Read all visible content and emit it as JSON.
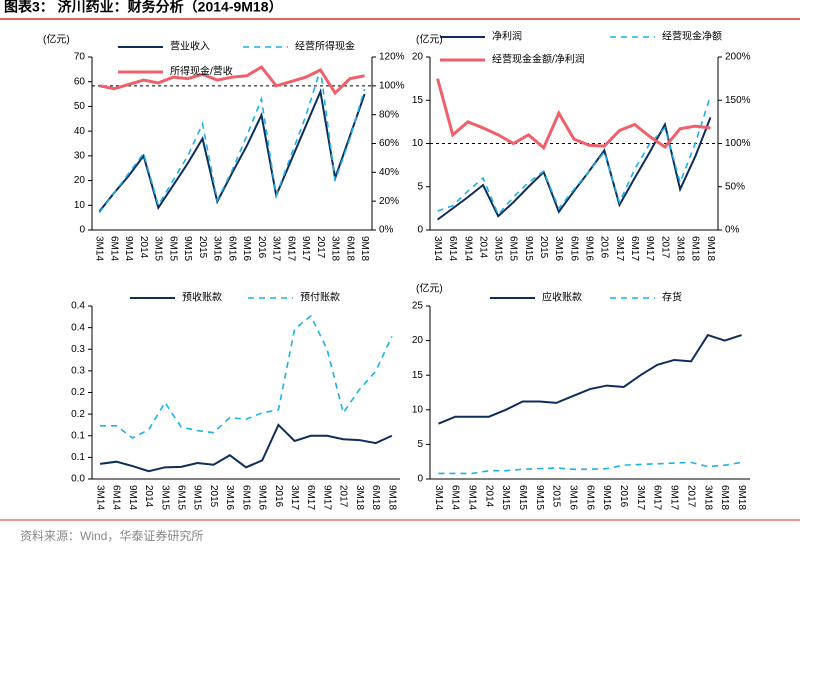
{
  "title": "图表3：  济川药业：财务分析（2014-9M18）",
  "source": "资料来源：Wind，华泰证券研究所",
  "chart_data": [
    {
      "type": "line",
      "y_label": "(亿元)",
      "categories": [
        "3M14",
        "6M14",
        "9M14",
        "2014",
        "3M15",
        "6M15",
        "9M15",
        "2015",
        "3M16",
        "6M16",
        "9M16",
        "2016",
        "3M17",
        "6M17",
        "9M17",
        "2017",
        "3M18",
        "6M18",
        "9M18"
      ],
      "ylim": [
        0,
        70
      ],
      "yticks": [
        0,
        10,
        20,
        30,
        40,
        50,
        60,
        70
      ],
      "y2lim": [
        0,
        120
      ],
      "y2ticks": [
        {
          "value": 0,
          "label": "0%"
        },
        {
          "value": 20,
          "label": "20%"
        },
        {
          "value": 40,
          "label": "40%"
        },
        {
          "value": 60,
          "label": "60%"
        },
        {
          "value": 80,
          "label": "80%"
        },
        {
          "value": 100,
          "label": "100%"
        },
        {
          "value": 120,
          "label": "120%"
        }
      ],
      "reference_line": 100,
      "series": [
        {
          "name": "营业收入",
          "color": "#0e2d5c",
          "style": "solid",
          "values": [
            7.5,
            15,
            22,
            30,
            9,
            18,
            27,
            37,
            11.5,
            23,
            34,
            46.5,
            14,
            28,
            42,
            56,
            21,
            38,
            55
          ]
        },
        {
          "name": "经营所得现金",
          "color": "#1ab2ea",
          "style": "dashed",
          "values": [
            7,
            15,
            23,
            31,
            10,
            20,
            30,
            43,
            12,
            24,
            38,
            53,
            14,
            30,
            46,
            65,
            20,
            37,
            57
          ]
        },
        {
          "name": "所得现金/营收",
          "color": "#f0606a",
          "style": "thick",
          "axis": "y2",
          "values": [
            100,
            98,
            101,
            104,
            102,
            106,
            105,
            108,
            104,
            106,
            107,
            113,
            100,
            103,
            106,
            111,
            95,
            105,
            107
          ]
        }
      ]
    },
    {
      "type": "line",
      "y_label": "(亿元)",
      "categories": [
        "3M14",
        "6M14",
        "9M14",
        "2014",
        "3M15",
        "6M15",
        "9M15",
        "2015",
        "3M16",
        "6M16",
        "9M16",
        "2016",
        "3M17",
        "6M17",
        "9M17",
        "2017",
        "3M18",
        "6M18",
        "9M18"
      ],
      "ylim": [
        0,
        20
      ],
      "yticks": [
        0,
        5,
        10,
        15,
        20
      ],
      "y2lim": [
        0,
        200
      ],
      "y2ticks": [
        {
          "value": 0,
          "label": "0%"
        },
        {
          "value": 50,
          "label": "50%"
        },
        {
          "value": 100,
          "label": "100%"
        },
        {
          "value": 150,
          "label": "150%"
        },
        {
          "value": 200,
          "label": "200%"
        }
      ],
      "reference_line": 100,
      "series": [
        {
          "name": "净利润",
          "color": "#0e2d5c",
          "style": "solid",
          "values": [
            1.2,
            2.5,
            3.8,
            5.2,
            1.6,
            3.2,
            5,
            6.7,
            2.1,
            4.5,
            6.8,
            9.2,
            2.9,
            6,
            9,
            12.2,
            4.7,
            8.5,
            13
          ]
        },
        {
          "name": "经营现金净额",
          "color": "#1ab2ea",
          "style": "dashed",
          "values": [
            2.2,
            2.8,
            4.5,
            6,
            1.8,
            3.8,
            5.5,
            6.8,
            2.5,
            4.7,
            6.8,
            9,
            3.2,
            7,
            10,
            11.8,
            5.5,
            10,
            15.5
          ]
        },
        {
          "name": "经营现金金额/净利润",
          "color": "#f0606a",
          "style": "thick",
          "axis": "y2",
          "values": [
            175,
            110,
            125,
            118,
            110,
            100,
            110,
            95,
            135,
            105,
            98,
            97,
            115,
            122,
            108,
            96,
            117,
            120,
            118
          ]
        }
      ]
    },
    {
      "type": "line",
      "categories": [
        "3M14",
        "6M14",
        "9M14",
        "2014",
        "3M15",
        "6M15",
        "9M15",
        "2015",
        "3M16",
        "6M16",
        "9M16",
        "2016",
        "3M17",
        "6M17",
        "9M17",
        "2017",
        "3M18",
        "6M18",
        "9M18"
      ],
      "ylim": [
        0,
        0.4
      ],
      "yticks": [
        {
          "value": 0,
          "label": "0.0"
        },
        {
          "value": 0.05,
          "label": "0.1"
        },
        {
          "value": 0.1,
          "label": "0.1"
        },
        {
          "value": 0.15,
          "label": "0.2"
        },
        {
          "value": 0.2,
          "label": "0.2"
        },
        {
          "value": 0.25,
          "label": "0.3"
        },
        {
          "value": 0.3,
          "label": "0.3"
        },
        {
          "value": 0.35,
          "label": "0.4"
        },
        {
          "value": 0.4,
          "label": "0.4"
        }
      ],
      "series": [
        {
          "name": "预收账款",
          "color": "#0e2d5c",
          "style": "solid",
          "values": [
            0.035,
            0.04,
            0.03,
            0.018,
            0.027,
            0.028,
            0.037,
            0.033,
            0.055,
            0.027,
            0.043,
            0.125,
            0.088,
            0.1,
            0.1,
            0.092,
            0.09,
            0.083,
            0.1
          ]
        },
        {
          "name": "预付账款",
          "color": "#1ab2ea",
          "style": "dashed",
          "values": [
            0.123,
            0.123,
            0.095,
            0.114,
            0.177,
            0.12,
            0.112,
            0.107,
            0.142,
            0.138,
            0.153,
            0.16,
            0.347,
            0.377,
            0.3,
            0.153,
            0.207,
            0.249,
            0.33
          ]
        }
      ]
    },
    {
      "type": "line",
      "y_label": "(亿元)",
      "categories": [
        "3M14",
        "6M14",
        "9M14",
        "2014",
        "3M15",
        "6M15",
        "9M15",
        "2015",
        "3M16",
        "6M16",
        "9M16",
        "2016",
        "3M17",
        "6M17",
        "9M17",
        "2017",
        "3M18",
        "6M18",
        "9M18"
      ],
      "ylim": [
        0,
        25
      ],
      "yticks": [
        0,
        5,
        10,
        15,
        20,
        25
      ],
      "series": [
        {
          "name": "应收账款",
          "color": "#0e2d5c",
          "style": "solid",
          "values": [
            8,
            9,
            9,
            9,
            10,
            11.2,
            11.2,
            11,
            12,
            13,
            13.5,
            13.3,
            15,
            16.5,
            17.2,
            17,
            20.8,
            20,
            20.8
          ]
        },
        {
          "name": "存货",
          "color": "#1ab2ea",
          "style": "dashed",
          "values": [
            0.8,
            0.8,
            0.8,
            1.2,
            1.2,
            1.4,
            1.5,
            1.6,
            1.4,
            1.4,
            1.5,
            2,
            2.1,
            2.2,
            2.3,
            2.4,
            1.8,
            2,
            2.4
          ]
        }
      ]
    }
  ]
}
